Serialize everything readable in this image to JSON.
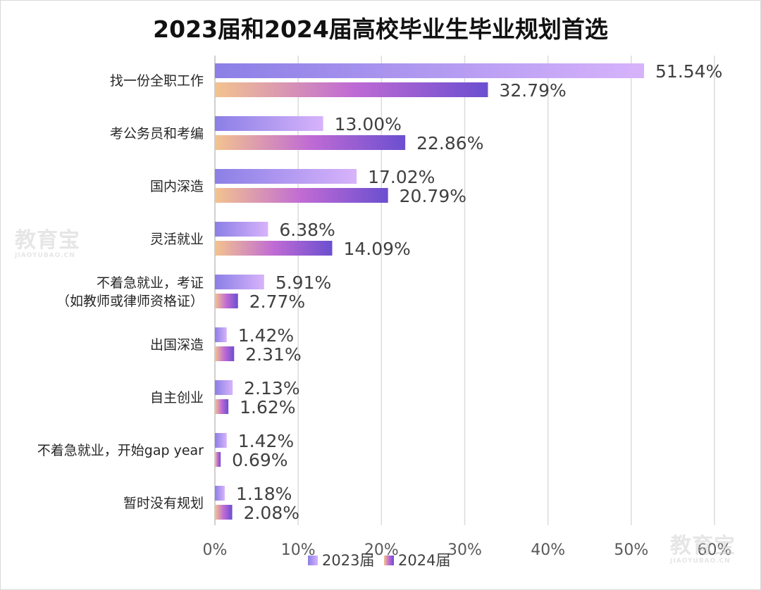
{
  "chart_data": {
    "type": "bar",
    "orientation": "horizontal",
    "title": "2023届和2024届高校毕业生毕业规划首选",
    "categories": [
      "找一份全职工作",
      "考公务员和考编",
      "国内深造",
      "灵活就业",
      "不着急就业，考证\n（如教师或律师资格证）",
      "出国深造",
      "自主创业",
      "不着急就业，开始gap year",
      "暂时没有规划"
    ],
    "series": [
      {
        "name": "2023届",
        "values": [
          51.54,
          13.0,
          17.02,
          6.38,
          5.91,
          1.42,
          2.13,
          1.42,
          1.18
        ],
        "labels": [
          "51.54%",
          "13.00%",
          "17.02%",
          "6.38%",
          "5.91%",
          "1.42%",
          "2.13%",
          "1.42%",
          "1.18%"
        ],
        "colors": [
          "#8b7fe6",
          "#d7b3fb"
        ]
      },
      {
        "name": "2024届",
        "values": [
          32.79,
          22.86,
          20.79,
          14.09,
          2.77,
          2.31,
          1.62,
          0.69,
          2.08
        ],
        "labels": [
          "32.79%",
          "22.86%",
          "20.79%",
          "14.09%",
          "2.77%",
          "2.31%",
          "1.62%",
          "0.69%",
          "2.08%"
        ],
        "colors": [
          "#f3c38f",
          "#c06bd4",
          "#6b4fd0"
        ]
      }
    ],
    "x_ticks": [
      0,
      10,
      20,
      30,
      40,
      50,
      60
    ],
    "x_tick_labels": [
      "0%",
      "10%",
      "20%",
      "30%",
      "40%",
      "50%",
      "60%"
    ],
    "xlim": [
      0,
      60
    ],
    "grid": "vertical",
    "legend": "bottom"
  },
  "watermark": {
    "brand": "教育宝",
    "url": "JIAOYUBAO.CN"
  }
}
